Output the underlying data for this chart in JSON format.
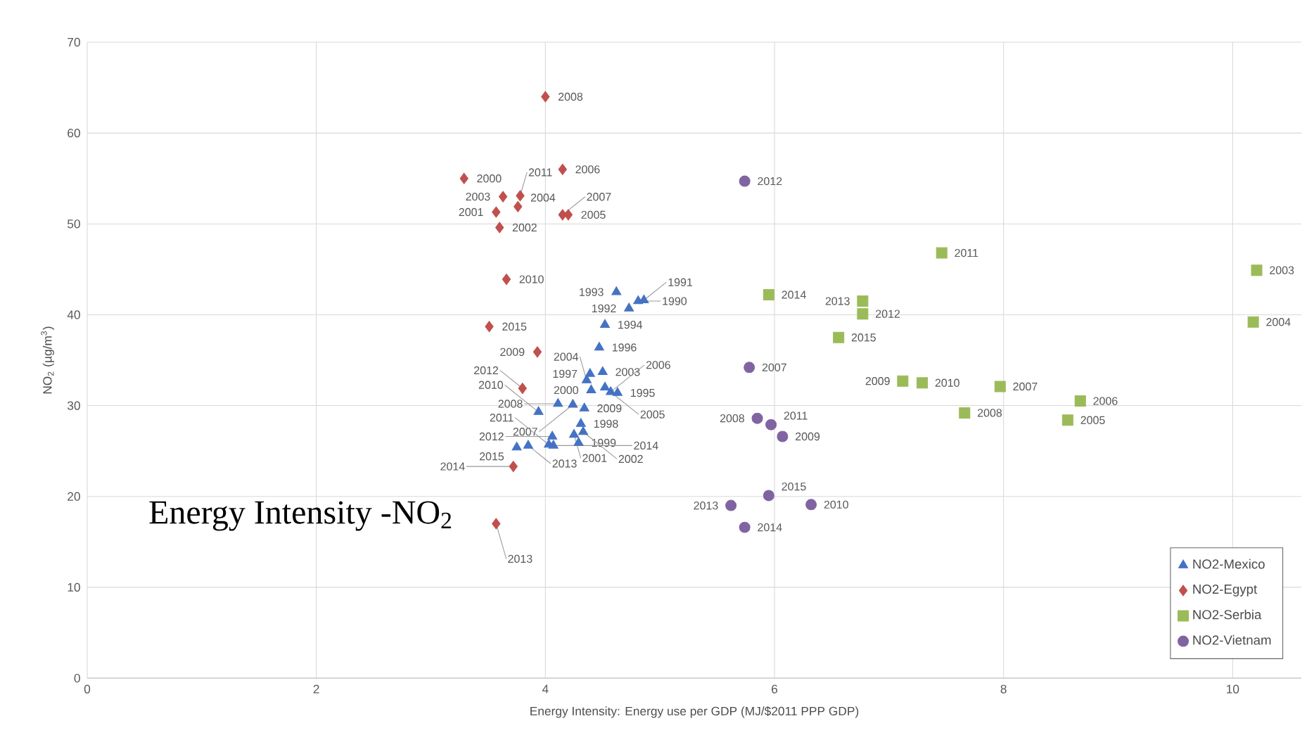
{
  "chart_data": {
    "type": "scatter",
    "xlabel": "Energy Intensity: Energy use per GDP (MJ/$2011 PPP GDP)",
    "ylabel": "NO$_{2}$ (µg/m$^{3}$)",
    "xlim": [
      0,
      10.6
    ],
    "ylim": [
      0,
      70
    ],
    "xticks": [
      0,
      2,
      4,
      6,
      8,
      10
    ],
    "yticks": [
      0,
      10,
      20,
      30,
      40,
      50,
      60,
      70
    ],
    "grid": true,
    "legend": "bottom right",
    "series": [
      {
        "name": "NO2-Mexico",
        "color": "#4472c4",
        "marker": "triangle",
        "x": [
          4.81,
          4.86,
          4.73,
          4.62,
          4.52,
          4.63,
          4.47,
          4.39,
          4.31,
          4.29,
          4.4,
          4.25,
          4.33,
          4.5,
          4.36,
          4.52,
          4.57,
          4.24,
          4.11,
          4.34,
          3.94,
          4.03,
          4.06,
          3.85,
          4.07,
          3.75
        ],
        "values": [
          41.5,
          41.6,
          40.7,
          42.5,
          38.9,
          31.4,
          36.4,
          33.5,
          28.0,
          25.9,
          31.7,
          26.8,
          27.1,
          33.7,
          32.8,
          32.0,
          31.5,
          30.1,
          30.2,
          29.7,
          29.3,
          25.7,
          26.6,
          25.6,
          25.6,
          25.4
        ]
      },
      {
        "name": "NO2-Egypt",
        "color": "#c0504d",
        "marker": "diamond",
        "x": [
          3.29,
          3.57,
          3.6,
          3.63,
          3.76,
          4.2,
          4.15,
          4.15,
          4.0,
          3.93,
          3.66,
          3.78,
          3.8,
          3.57,
          3.72,
          3.51
        ],
        "values": [
          55.0,
          51.3,
          49.6,
          53.0,
          51.9,
          51.0,
          56.0,
          51.0,
          64.0,
          35.9,
          43.9,
          53.1,
          31.9,
          17.0,
          23.3,
          38.7
        ]
      },
      {
        "name": "NO2-Serbia",
        "color": "#9bbb59",
        "marker": "square",
        "x": [
          10.21,
          10.18,
          8.56,
          8.67,
          7.97,
          7.66,
          7.12,
          7.29,
          7.46,
          6.77,
          6.77,
          5.95,
          6.56
        ],
        "values": [
          44.9,
          39.2,
          28.4,
          30.5,
          32.1,
          29.2,
          32.7,
          32.5,
          46.8,
          40.1,
          41.5,
          42.2,
          37.5
        ]
      },
      {
        "name": "NO2-Vietnam",
        "color": "#8064a2",
        "marker": "circle",
        "x": [
          5.78,
          5.85,
          6.07,
          6.32,
          5.97,
          5.74,
          5.62,
          5.74,
          5.95
        ],
        "values": [
          34.2,
          28.6,
          26.6,
          19.1,
          27.9,
          54.7,
          19.0,
          16.6,
          20.1
        ]
      }
    ],
    "annotations": [
      "Energy Intensity -NO$_{2}$",
      {
        "text": "1990",
        "x": 4.81,
        "y": 41.5
      },
      {
        "text": "1991",
        "x": 4.86,
        "y": 41.6
      },
      {
        "text": "1992",
        "x": 4.73,
        "y": 40.7
      },
      {
        "text": "1993",
        "x": 4.62,
        "y": 42.5
      },
      {
        "text": "1994",
        "x": 4.52,
        "y": 38.9
      },
      {
        "text": "1995",
        "x": 4.63,
        "y": 31.4
      },
      {
        "text": "1996",
        "x": 4.47,
        "y": 36.4
      },
      {
        "text": "1997",
        "x": 4.39,
        "y": 33.5
      },
      {
        "text": "1998",
        "x": 4.31,
        "y": 28.0
      },
      {
        "text": "1999",
        "x": 4.29,
        "y": 25.9
      },
      {
        "text": "2000",
        "x": 4.4,
        "y": 31.7
      },
      {
        "text": "2001",
        "x": 4.25,
        "y": 26.8
      },
      {
        "text": "2002",
        "x": 4.33,
        "y": 27.1
      },
      {
        "text": "2003",
        "x": 4.5,
        "y": 33.7
      },
      {
        "text": "2004",
        "x": 4.36,
        "y": 32.8
      },
      {
        "text": "2005",
        "x": 4.52,
        "y": 32.0
      },
      {
        "text": "2006",
        "x": 4.57,
        "y": 31.5
      },
      {
        "text": "2007",
        "x": 4.24,
        "y": 30.1
      },
      {
        "text": "2008",
        "x": 4.11,
        "y": 30.2
      },
      {
        "text": "2009",
        "x": 4.34,
        "y": 29.7
      },
      {
        "text": "2010",
        "x": 3.94,
        "y": 29.3
      },
      {
        "text": "2011",
        "x": 4.03,
        "y": 25.7
      },
      {
        "text": "2012",
        "x": 4.06,
        "y": 26.6
      },
      {
        "text": "2013",
        "x": 3.85,
        "y": 25.6
      },
      {
        "text": "2014",
        "x": 4.07,
        "y": 25.6
      },
      {
        "text": "2015",
        "x": 3.75,
        "y": 25.4
      },
      {
        "text": "2000",
        "x": 3.29,
        "y": 55.0
      },
      {
        "text": "2001",
        "x": 3.57,
        "y": 51.3
      },
      {
        "text": "2002",
        "x": 3.6,
        "y": 49.6
      },
      {
        "text": "2003",
        "x": 3.63,
        "y": 53.0
      },
      {
        "text": "2004",
        "x": 3.76,
        "y": 51.9
      },
      {
        "text": "2005",
        "x": 4.2,
        "y": 51.0
      },
      {
        "text": "2006",
        "x": 4.15,
        "y": 56.0
      },
      {
        "text": "2007",
        "x": 4.15,
        "y": 51.0
      },
      {
        "text": "2008",
        "x": 4.0,
        "y": 64.0
      },
      {
        "text": "2009",
        "x": 3.93,
        "y": 35.9
      },
      {
        "text": "2010",
        "x": 3.66,
        "y": 43.9
      },
      {
        "text": "2011",
        "x": 3.78,
        "y": 53.1
      },
      {
        "text": "2012",
        "x": 3.8,
        "y": 31.9
      },
      {
        "text": "2013",
        "x": 3.57,
        "y": 17.0
      },
      {
        "text": "2014",
        "x": 3.72,
        "y": 23.3
      },
      {
        "text": "2015",
        "x": 3.51,
        "y": 38.7
      },
      {
        "text": "2003",
        "x": 10.21,
        "y": 44.9
      },
      {
        "text": "2004",
        "x": 10.18,
        "y": 39.2
      },
      {
        "text": "2005",
        "x": 8.56,
        "y": 28.4
      },
      {
        "text": "2006",
        "x": 8.67,
        "y": 30.5
      },
      {
        "text": "2007",
        "x": 7.97,
        "y": 32.1
      },
      {
        "text": "2008",
        "x": 7.66,
        "y": 29.2
      },
      {
        "text": "2009",
        "x": 7.12,
        "y": 32.7
      },
      {
        "text": "2010",
        "x": 7.29,
        "y": 32.5
      },
      {
        "text": "2011",
        "x": 7.46,
        "y": 46.8
      },
      {
        "text": "2012",
        "x": 6.77,
        "y": 40.1
      },
      {
        "text": "2013",
        "x": 6.77,
        "y": 41.5
      },
      {
        "text": "2014",
        "x": 5.95,
        "y": 42.2
      },
      {
        "text": "2015",
        "x": 6.56,
        "y": 37.5
      },
      {
        "text": "2007",
        "x": 5.78,
        "y": 34.2
      },
      {
        "text": "2008",
        "x": 5.85,
        "y": 28.6
      },
      {
        "text": "2009",
        "x": 6.07,
        "y": 26.6
      },
      {
        "text": "2010",
        "x": 6.32,
        "y": 19.1
      },
      {
        "text": "2011",
        "x": 5.97,
        "y": 27.9
      },
      {
        "text": "2012",
        "x": 5.74,
        "y": 54.7
      },
      {
        "text": "2013",
        "x": 5.62,
        "y": 19.0
      },
      {
        "text": "2014",
        "x": 5.74,
        "y": 16.6
      },
      {
        "text": "2015",
        "x": 5.95,
        "y": 20.1
      }
    ]
  }
}
